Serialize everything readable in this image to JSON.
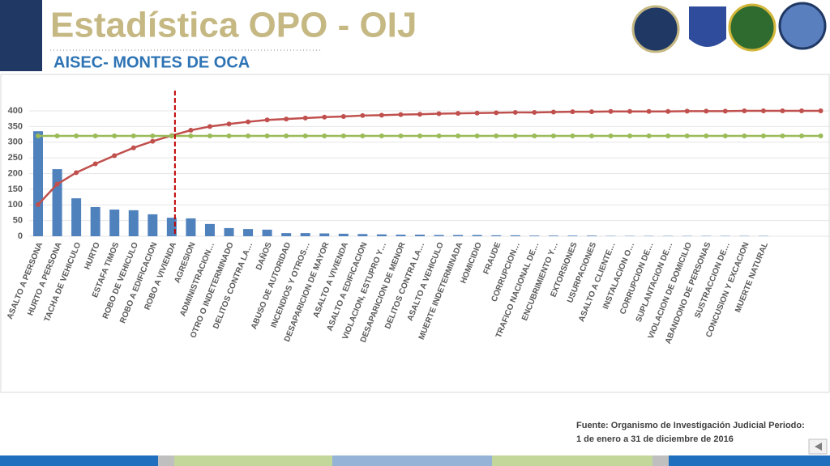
{
  "header": {
    "title": "Estadística OPO - OIJ",
    "subtitle": "AISEC- MONTES DE OCA"
  },
  "footer": {
    "source_lines": [
      "Fuente: Organismo de Investigación Judicial Periodo:",
      "1 de enero a 31 de diciembre de 2016"
    ]
  },
  "chart_data": {
    "type": "pareto",
    "categories": [
      "ASALTO A PERSONA",
      "HURTO A PERSONA",
      "TACHA DE VEHICULO",
      "HURTO",
      "ESTAFA TIMOS",
      "ROBO DE VEHICULO",
      "ROBO A EDIFICACION",
      "ROBO A VIVIENDA",
      "AGRESION",
      "ADMINISTRACION…",
      "OTRO O INDETERMINADO",
      "DELITOS CONTRA LA…",
      "DAÑOS",
      "ABUSO DE AUTORIDAD",
      "INCENDIOS Y OTROS…",
      "DESAPARICION DE MAYOR",
      "ASALTO A VIVIENDA",
      "ASALTO A EDIFICACION",
      "VIOLACION, ESTUPRO Y…",
      "DESAPARICION DE MENOR",
      "DELITOS CONTRA LA…",
      "ASALTO A VEHICULO",
      "MUERTE INDETERMINADA",
      "HOMICIDIO",
      "FRAUDE",
      "CORRUPCION…",
      "TRAFICO NACIONAL DE…",
      "ENCUBRIMIENTO Y…",
      "EXTORSIONES",
      "USURPACIONES",
      "ASALTO A CLIENTE…",
      "INSTALACION O…",
      "CORRUPCION DE…",
      "SUPLANTACION DE…",
      "VIOLACION DE DOMICILIO",
      "ABANDONO DE PERSONAS",
      "SUSTRACCION DE…",
      "CONCUSION Y EXCACION",
      "MUERTE NATURAL",
      null,
      null,
      null
    ],
    "series": [
      {
        "kind": "bar",
        "color": "#4f81bd",
        "values": [
          335,
          214,
          121,
          93,
          85,
          83,
          70,
          59,
          57,
          39,
          26,
          23,
          21,
          10,
          10,
          9,
          8,
          7,
          6,
          5,
          5,
          4,
          4,
          4,
          3,
          3,
          2,
          2,
          2,
          2,
          1,
          1,
          1,
          1,
          1,
          1,
          1,
          1,
          1,
          0,
          0,
          0
        ]
      },
      {
        "kind": "line",
        "color": "#c0504d",
        "values": [
          101,
          166,
          203,
          231,
          257,
          282,
          303,
          321,
          338,
          350,
          358,
          365,
          371,
          374,
          377,
          380,
          382,
          385,
          386,
          388,
          389,
          391,
          392,
          393,
          394,
          395,
          395,
          396,
          397,
          397,
          398,
          398,
          398,
          398,
          399,
          399,
          399,
          400,
          400,
          400,
          400,
          400
        ]
      },
      {
        "kind": "line",
        "color": "#9bbb59",
        "values": [
          320,
          320,
          320,
          320,
          320,
          320,
          320,
          320,
          320,
          320,
          320,
          320,
          320,
          320,
          320,
          320,
          320,
          320,
          320,
          320,
          320,
          320,
          320,
          320,
          320,
          320,
          320,
          320,
          320,
          320,
          320,
          320,
          320,
          320,
          320,
          320,
          320,
          320,
          320,
          320,
          320,
          320
        ]
      }
    ],
    "ylim": [
      0,
      400
    ],
    "yticks": [
      0,
      50,
      100,
      150,
      200,
      250,
      300,
      350,
      400
    ],
    "grid": true
  }
}
